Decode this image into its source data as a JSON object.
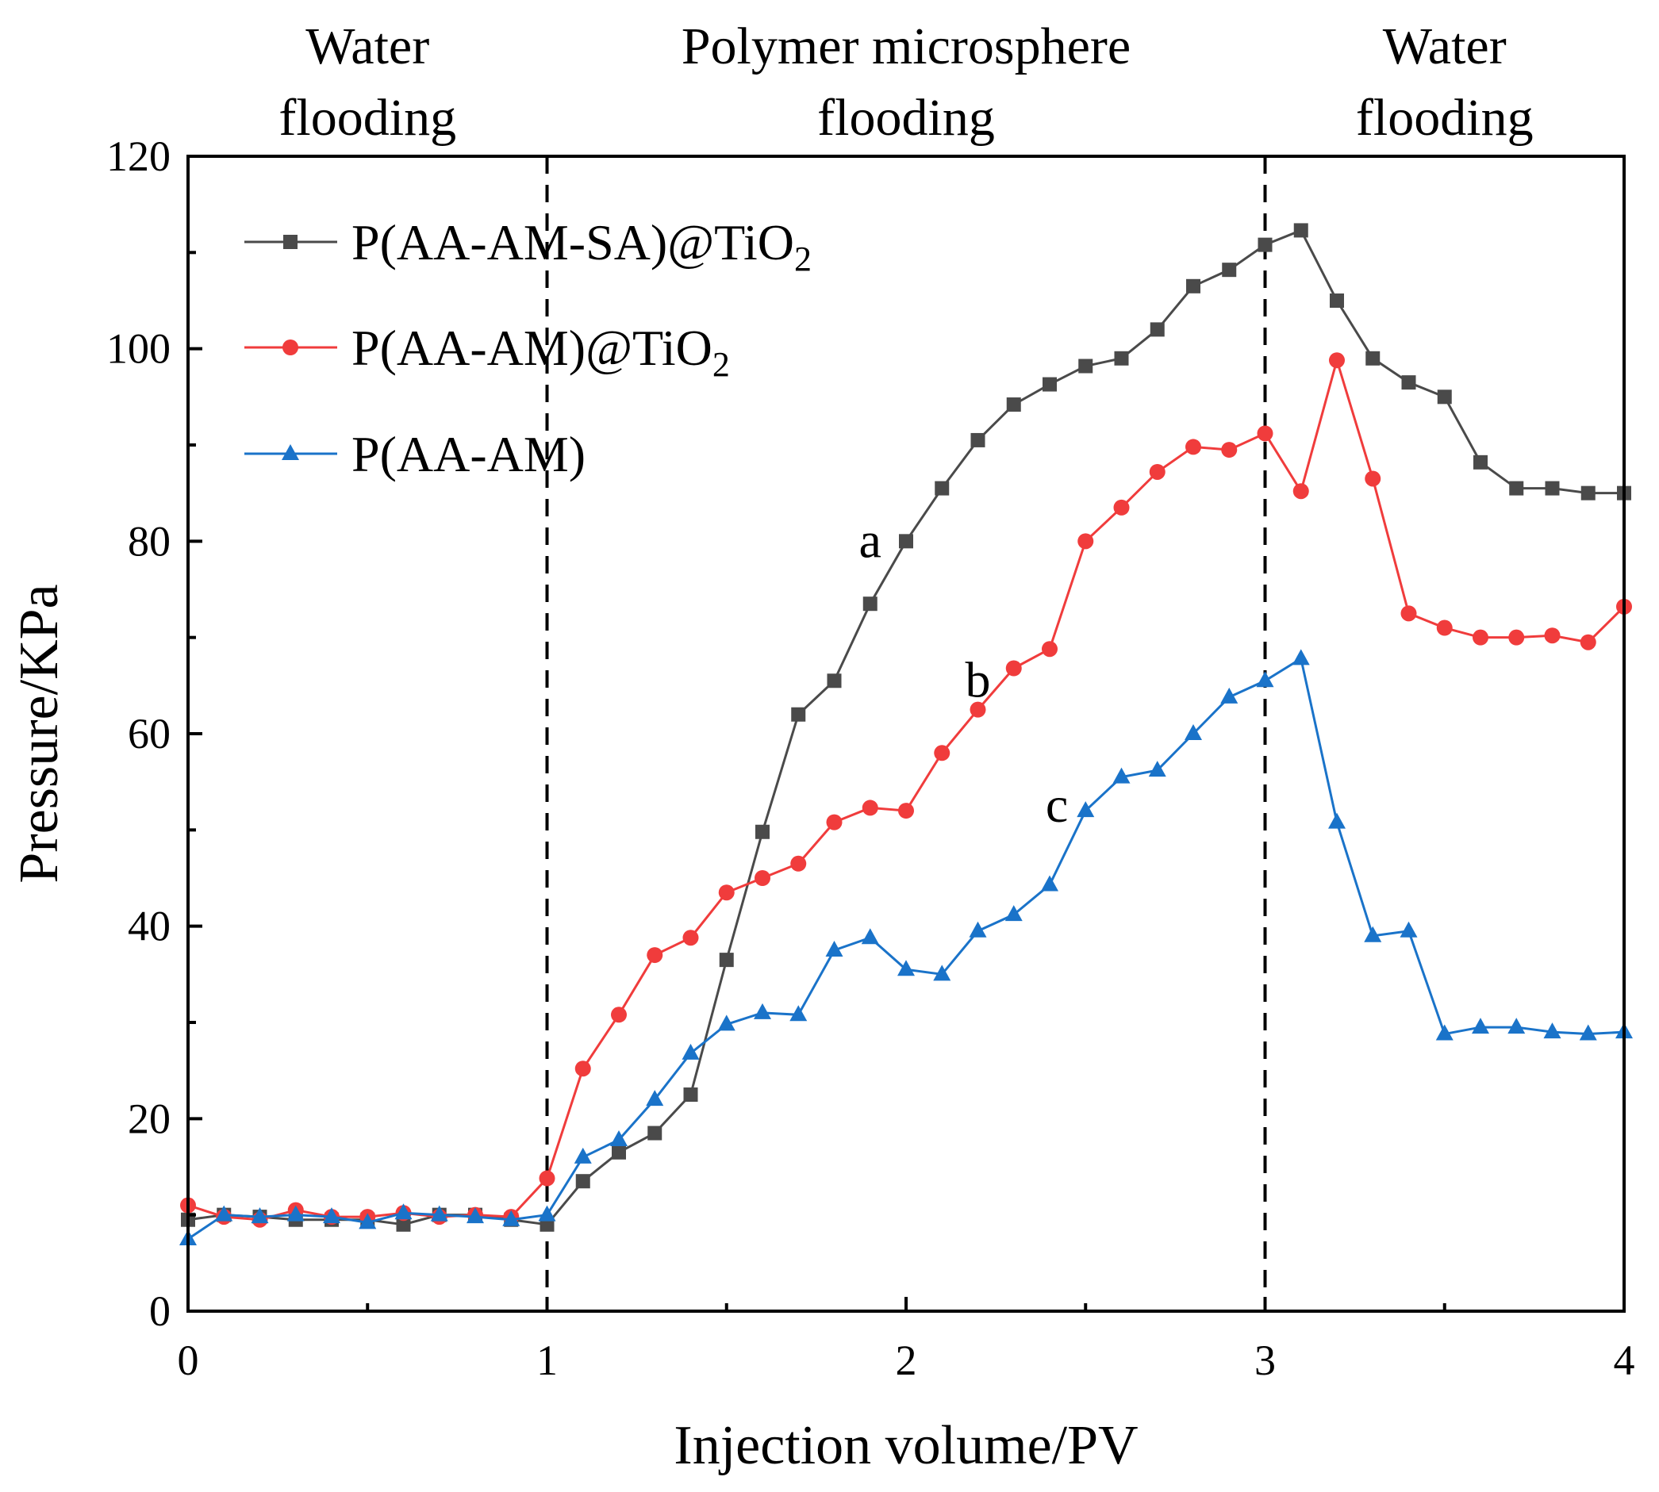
{
  "chart_data": {
    "type": "line",
    "title": "",
    "xlabel": "Injection volume/PV",
    "ylabel": "Pressure/KPa",
    "xlim": [
      0,
      4
    ],
    "ylim": [
      0,
      120
    ],
    "xticks": [
      0,
      1,
      2,
      3,
      4
    ],
    "yticks": [
      0,
      20,
      40,
      60,
      80,
      100,
      120
    ],
    "grid": false,
    "phase_boundaries": [
      1,
      3
    ],
    "phases": [
      {
        "line1": "Water",
        "line2": "flooding",
        "center_x": 0.5
      },
      {
        "line1": "Polymer microsphere",
        "line2": "flooding",
        "center_x": 2.0
      },
      {
        "line1": "Water",
        "line2": "flooding",
        "center_x": 3.5
      }
    ],
    "legend_position": "top-left",
    "series": [
      {
        "name": "P(AA-AM-SA)@TiO",
        "subscript": "2",
        "color": "#4a4a4a",
        "marker": "square",
        "curve_label": "a",
        "label_at": [
          1.9,
          80
        ],
        "x": [
          0,
          0.1,
          0.2,
          0.3,
          0.4,
          0.5,
          0.6,
          0.7,
          0.8,
          0.9,
          1.0,
          1.1,
          1.2,
          1.3,
          1.4,
          1.5,
          1.6,
          1.7,
          1.8,
          1.9,
          2.0,
          2.1,
          2.2,
          2.3,
          2.4,
          2.5,
          2.6,
          2.7,
          2.8,
          2.9,
          3.0,
          3.1,
          3.2,
          3.3,
          3.4,
          3.5,
          3.6,
          3.7,
          3.8,
          3.9,
          4.0
        ],
        "values": [
          9.5,
          10.0,
          9.8,
          9.5,
          9.5,
          9.5,
          9.0,
          10.0,
          10.0,
          9.5,
          9.0,
          13.5,
          16.5,
          18.5,
          22.5,
          36.5,
          49.8,
          62.0,
          65.5,
          73.5,
          80.0,
          85.5,
          90.5,
          94.2,
          96.3,
          98.2,
          99.0,
          102.0,
          106.5,
          108.2,
          110.8,
          112.3,
          105.0,
          99.0,
          96.5,
          95.0,
          88.2,
          85.5,
          85.5,
          85.0,
          85.0
        ]
      },
      {
        "name": "P(AA-AM)@TiO",
        "subscript": "2",
        "color": "#f03c3c",
        "marker": "circle",
        "curve_label": "b",
        "label_at": [
          2.2,
          65.5
        ],
        "x": [
          0,
          0.1,
          0.2,
          0.3,
          0.4,
          0.5,
          0.6,
          0.7,
          0.8,
          0.9,
          1.0,
          1.1,
          1.2,
          1.3,
          1.4,
          1.5,
          1.6,
          1.7,
          1.8,
          1.9,
          2.0,
          2.1,
          2.2,
          2.3,
          2.4,
          2.5,
          2.6,
          2.7,
          2.8,
          2.9,
          3.0,
          3.1,
          3.2,
          3.3,
          3.4,
          3.5,
          3.6,
          3.7,
          3.8,
          3.9,
          4.0
        ],
        "values": [
          11.0,
          9.8,
          9.5,
          10.5,
          9.8,
          9.8,
          10.2,
          9.8,
          10.0,
          9.8,
          13.8,
          25.2,
          30.8,
          37.0,
          38.8,
          43.5,
          45.0,
          46.5,
          50.8,
          52.3,
          52.0,
          58.0,
          62.5,
          66.8,
          68.8,
          80.0,
          83.5,
          87.2,
          89.8,
          89.5,
          91.2,
          85.2,
          98.8,
          86.5,
          72.5,
          71.0,
          70.0,
          70.0,
          70.2,
          69.5,
          73.2
        ]
      },
      {
        "name": "P(AA-AM)",
        "subscript": "",
        "color": "#1a73c9",
        "marker": "triangle",
        "curve_label": "c",
        "label_at": [
          2.42,
          52.5
        ],
        "x": [
          0,
          0.1,
          0.2,
          0.3,
          0.4,
          0.5,
          0.6,
          0.7,
          0.8,
          0.9,
          1.0,
          1.1,
          1.2,
          1.3,
          1.4,
          1.5,
          1.6,
          1.7,
          1.8,
          1.9,
          2.0,
          2.1,
          2.2,
          2.3,
          2.4,
          2.5,
          2.6,
          2.7,
          2.8,
          2.9,
          3.0,
          3.1,
          3.2,
          3.3,
          3.4,
          3.5,
          3.6,
          3.7,
          3.8,
          3.9,
          4.0
        ],
        "values": [
          7.5,
          10.0,
          9.8,
          10.0,
          9.8,
          9.2,
          10.2,
          10.0,
          9.8,
          9.5,
          10.0,
          16.0,
          17.8,
          22.0,
          26.8,
          29.8,
          31.0,
          30.8,
          37.5,
          38.8,
          35.5,
          35.0,
          39.5,
          41.2,
          44.3,
          52.0,
          55.5,
          56.2,
          60.0,
          63.8,
          65.5,
          67.8,
          50.8,
          39.0,
          39.5,
          28.8,
          29.5,
          29.5,
          29.0,
          28.8,
          29.0
        ]
      }
    ]
  }
}
